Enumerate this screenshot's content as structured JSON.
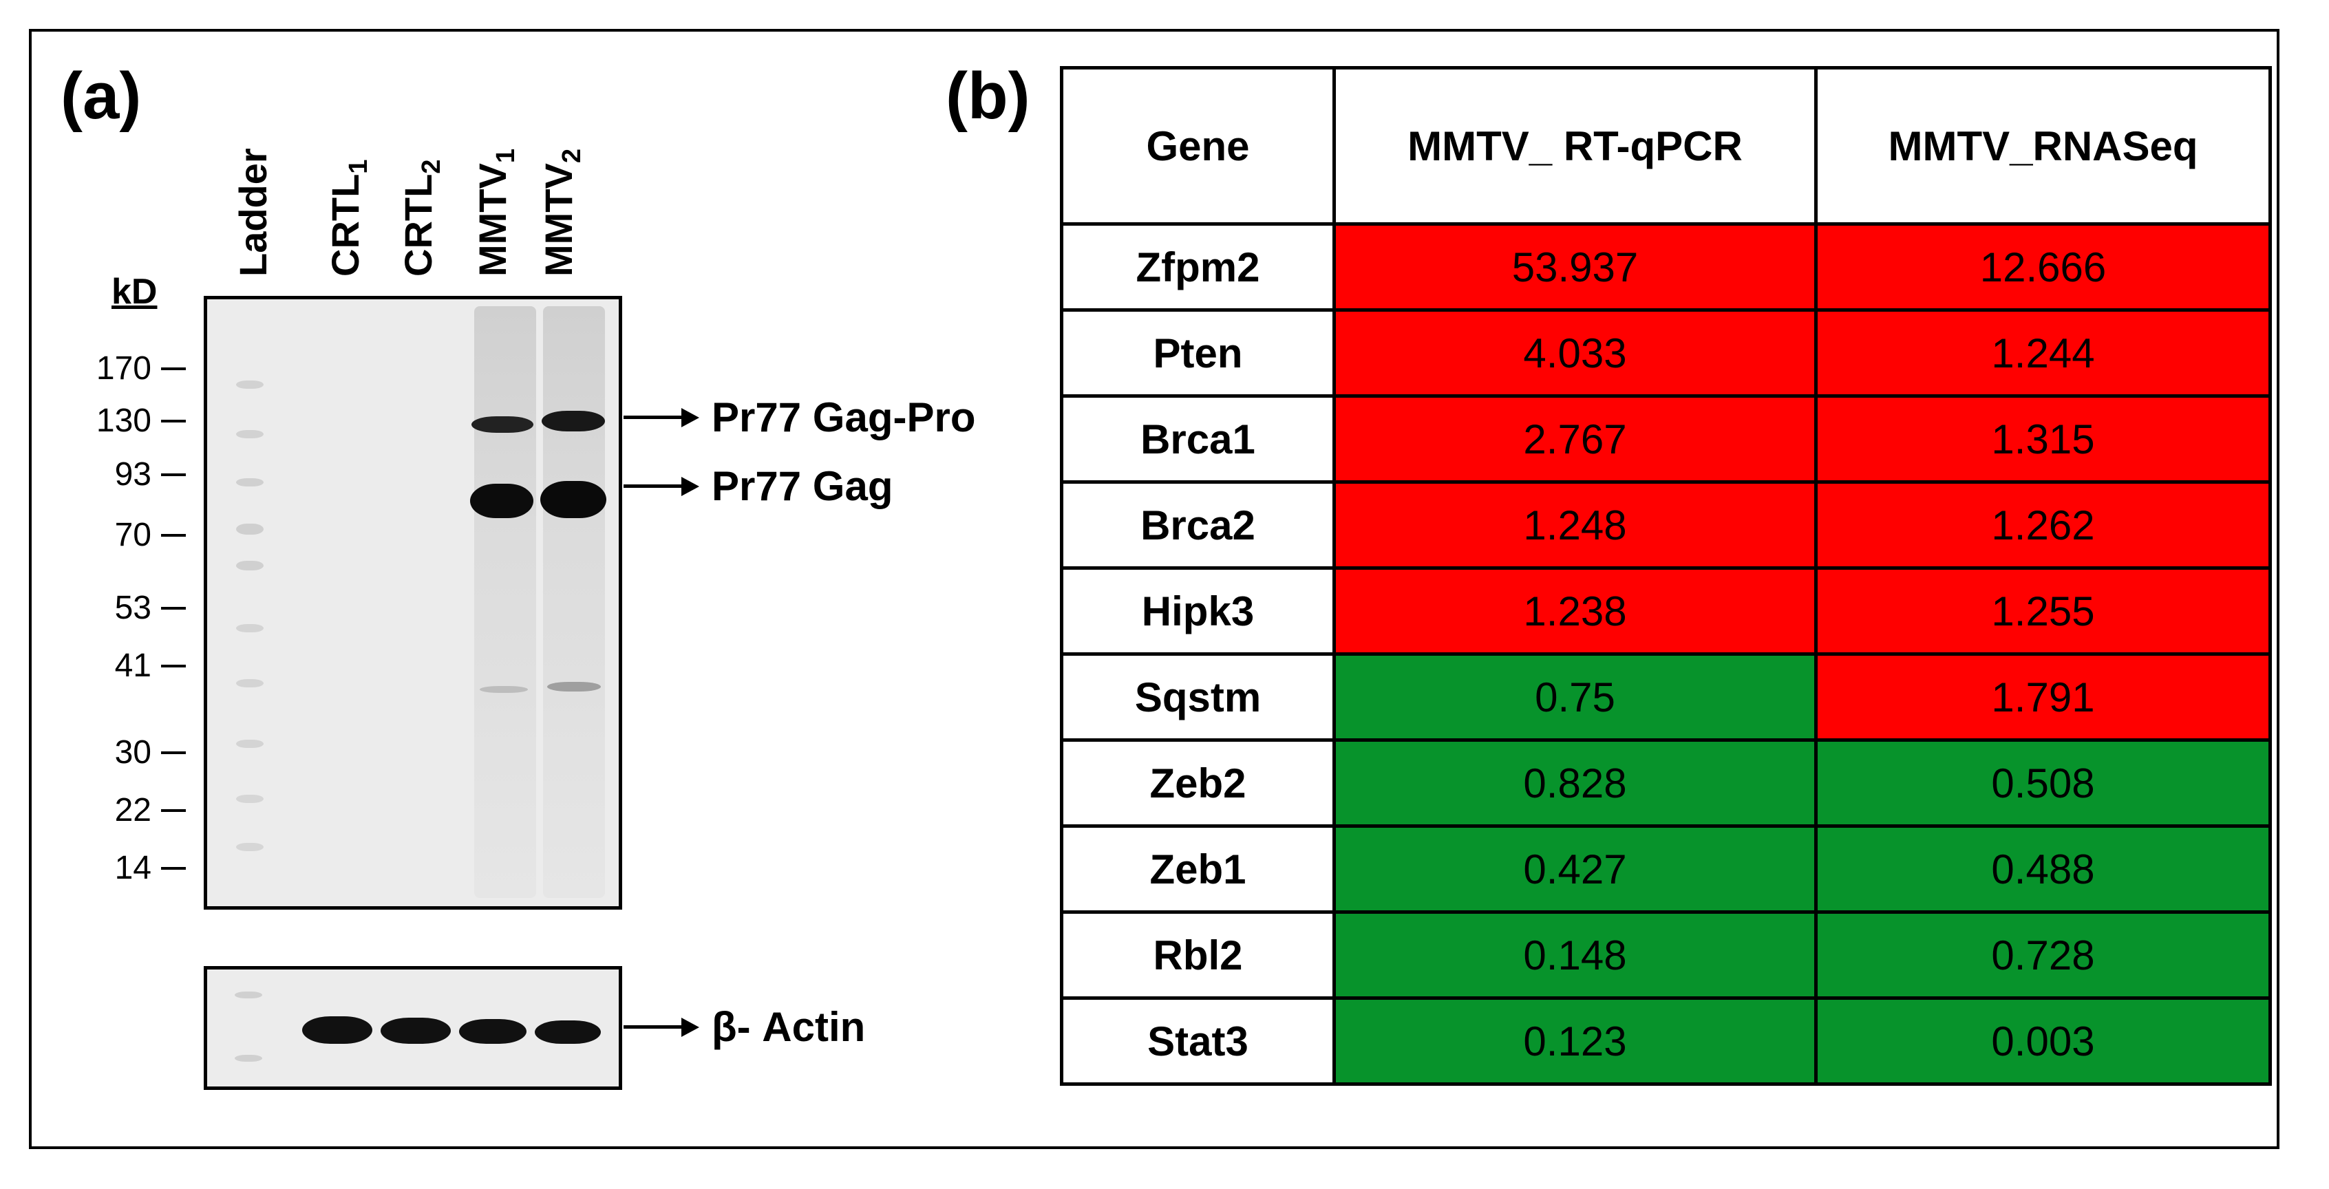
{
  "colors": {
    "up": "#ff0000",
    "down": "#07932b",
    "blot_bg": "#ececec",
    "band": "#111111"
  },
  "panel_a": {
    "label": "(a)",
    "lane_labels": [
      {
        "text": "Ladder",
        "sub": ""
      },
      {
        "text": "CRTL",
        "sub": "1"
      },
      {
        "text": "CRTL",
        "sub": "2"
      },
      {
        "text": "MMTV",
        "sub": "1"
      },
      {
        "text": "MMTV",
        "sub": "2"
      }
    ],
    "kd_title": "kD",
    "mw_markers": [
      "170",
      "130",
      "93",
      "70",
      "53",
      "41",
      "30",
      "22",
      "14"
    ],
    "annotations": {
      "pr77_gag_pro": "Pr77 Gag-Pro",
      "pr77_gag": "Pr77 Gag",
      "beta_actin": "β- Actin"
    }
  },
  "panel_b": {
    "label": "(b)",
    "headers": [
      "Gene",
      "MMTV_ RT-qPCR",
      "MMTV_RNASeq"
    ],
    "rows": [
      {
        "gene": "Zfpm2",
        "rtqpcr": "53.937",
        "rnaseq": "12.666",
        "rtqpcr_dir": "up",
        "rnaseq_dir": "up"
      },
      {
        "gene": "Pten",
        "rtqpcr": "4.033",
        "rnaseq": "1.244",
        "rtqpcr_dir": "up",
        "rnaseq_dir": "up"
      },
      {
        "gene": "Brca1",
        "rtqpcr": "2.767",
        "rnaseq": "1.315",
        "rtqpcr_dir": "up",
        "rnaseq_dir": "up"
      },
      {
        "gene": "Brca2",
        "rtqpcr": "1.248",
        "rnaseq": "1.262",
        "rtqpcr_dir": "up",
        "rnaseq_dir": "up"
      },
      {
        "gene": "Hipk3",
        "rtqpcr": "1.238",
        "rnaseq": "1.255",
        "rtqpcr_dir": "up",
        "rnaseq_dir": "up"
      },
      {
        "gene": "Sqstm",
        "rtqpcr": "0.75",
        "rnaseq": "1.791",
        "rtqpcr_dir": "down",
        "rnaseq_dir": "up"
      },
      {
        "gene": "Zeb2",
        "rtqpcr": "0.828",
        "rnaseq": "0.508",
        "rtqpcr_dir": "down",
        "rnaseq_dir": "down"
      },
      {
        "gene": "Zeb1",
        "rtqpcr": "0.427",
        "rnaseq": "0.488",
        "rtqpcr_dir": "down",
        "rnaseq_dir": "down"
      },
      {
        "gene": "Rbl2",
        "rtqpcr": "0.148",
        "rnaseq": "0.728",
        "rtqpcr_dir": "down",
        "rnaseq_dir": "down"
      },
      {
        "gene": "Stat3",
        "rtqpcr": "0.123",
        "rnaseq": "0.003",
        "rtqpcr_dir": "down",
        "rnaseq_dir": "down"
      }
    ]
  }
}
